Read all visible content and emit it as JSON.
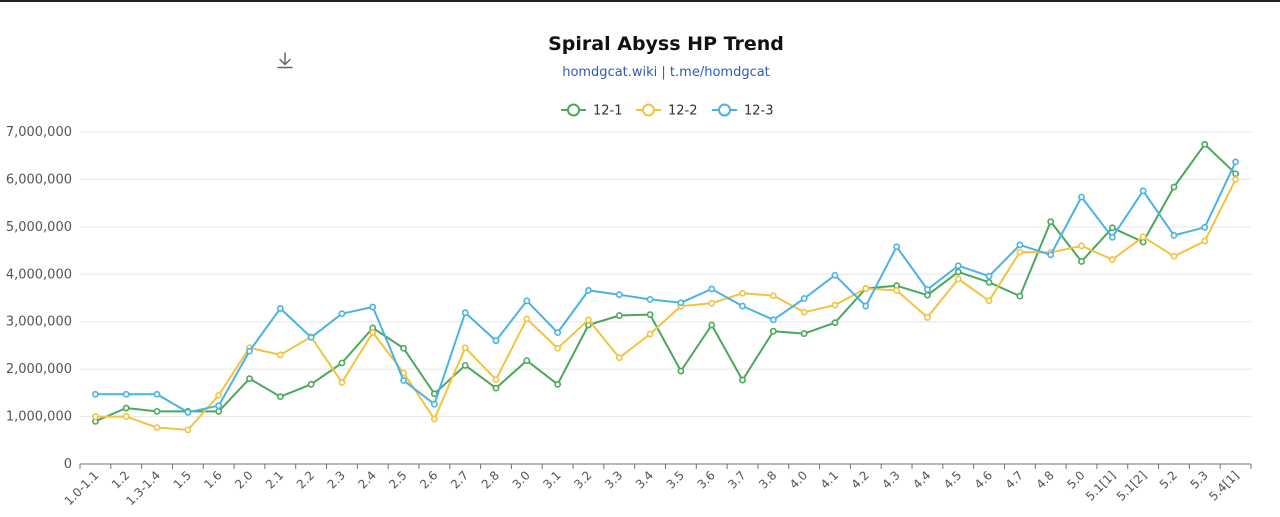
{
  "chart_data": {
    "type": "line",
    "title": "Spiral Abyss HP Trend",
    "subtitle": "homdgcat.wiki | t.me/homdgcat",
    "xlabel": "",
    "ylabel": "",
    "ylim": [
      0,
      7000000
    ],
    "yticks": [
      "0",
      "1,000,000",
      "2,000,000",
      "3,000,000",
      "4,000,000",
      "5,000,000",
      "6,000,000",
      "7,000,000"
    ],
    "grid": true,
    "legend_position": "top-center",
    "categories": [
      "1.0-1.1",
      "1.2",
      "1.3-1.4",
      "1.5",
      "1.6",
      "2.0",
      "2.1",
      "2.2",
      "2.3",
      "2.4",
      "2.5",
      "2.6",
      "2.7",
      "2.8",
      "3.0",
      "3.1",
      "3.2",
      "3.3",
      "3.4",
      "3.5",
      "3.6",
      "3.7",
      "3.8",
      "4.0",
      "4.1",
      "4.2",
      "4.3",
      "4.4",
      "4.5",
      "4.6",
      "4.7",
      "4.8",
      "5.0",
      "5.1[1]",
      "5.1[2]",
      "5.2",
      "5.3",
      "5.4[1]"
    ],
    "series": [
      {
        "name": "12-1",
        "color": "#4aa85b",
        "values": [
          900000,
          1180000,
          1110000,
          1110000,
          1110000,
          1800000,
          1420000,
          1680000,
          2130000,
          2870000,
          2440000,
          1480000,
          2080000,
          1600000,
          2180000,
          1680000,
          2930000,
          3130000,
          3150000,
          1960000,
          2930000,
          1770000,
          2800000,
          2750000,
          2980000,
          3700000,
          3760000,
          3560000,
          4050000,
          3830000,
          3540000,
          5110000,
          4270000,
          4980000,
          4680000,
          5840000,
          6740000,
          6120000
        ]
      },
      {
        "name": "12-2",
        "color": "#f3c33f",
        "values": [
          1000000,
          1000000,
          770000,
          720000,
          1450000,
          2450000,
          2300000,
          2680000,
          1720000,
          2770000,
          1920000,
          950000,
          2450000,
          1780000,
          3060000,
          2440000,
          3040000,
          2240000,
          2740000,
          3330000,
          3390000,
          3600000,
          3550000,
          3200000,
          3350000,
          3700000,
          3660000,
          3090000,
          3900000,
          3440000,
          4470000,
          4460000,
          4600000,
          4310000,
          4790000,
          4380000,
          4700000,
          6000000
        ]
      },
      {
        "name": "12-3",
        "color": "#4ab3e2",
        "values": [
          1470000,
          1470000,
          1470000,
          1090000,
          1230000,
          2380000,
          3280000,
          2670000,
          3170000,
          3310000,
          1760000,
          1260000,
          3190000,
          2600000,
          3440000,
          2770000,
          3660000,
          3570000,
          3470000,
          3400000,
          3690000,
          3330000,
          3040000,
          3490000,
          3980000,
          3330000,
          4580000,
          3680000,
          4180000,
          3960000,
          4620000,
          4410000,
          5630000,
          4780000,
          5760000,
          4820000,
          4990000,
          6370000
        ]
      }
    ]
  }
}
